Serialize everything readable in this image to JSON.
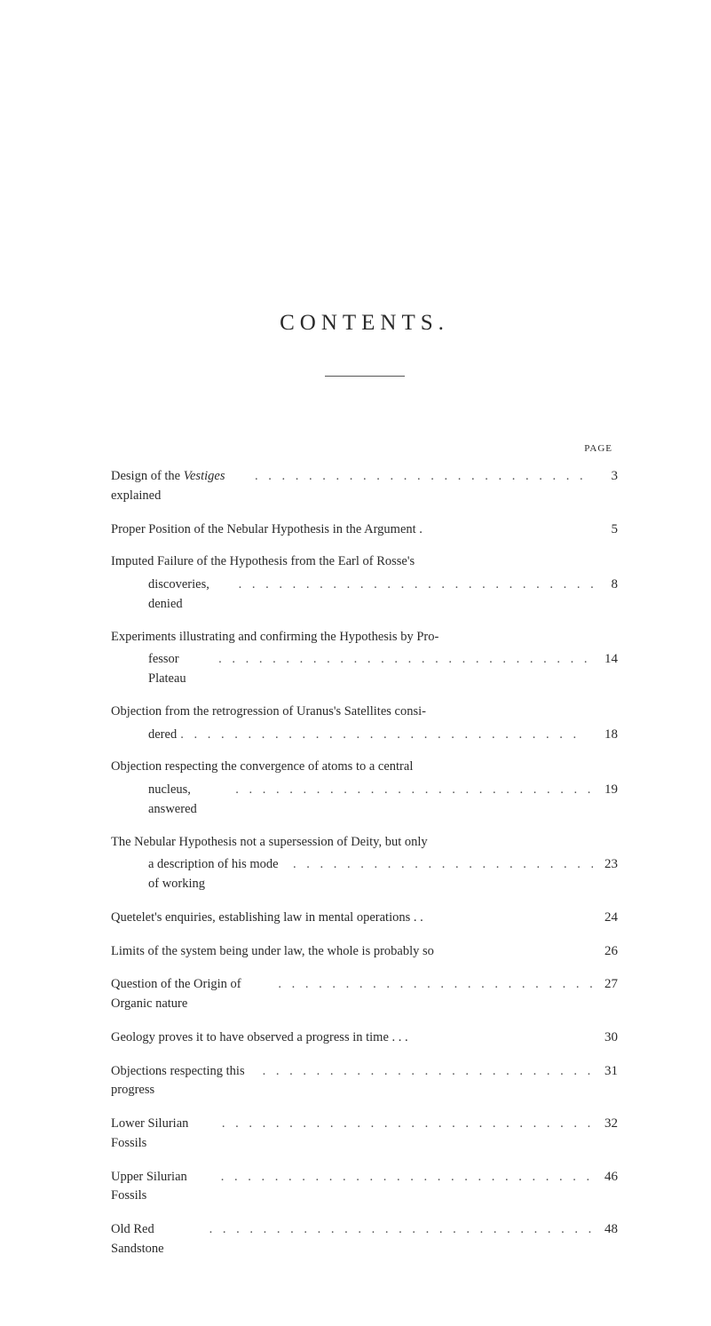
{
  "title": "CONTENTS.",
  "pageHeader": "PAGE",
  "leaderDots": ". . . . . . . . . . . . . . . . . . . . . . . . . . . . . .",
  "entries": [
    {
      "lines": [
        {
          "text": "Design of the Vestiges explained",
          "page": "3",
          "indent": false,
          "italic": false
        }
      ],
      "italicWord": "Vestiges",
      "preItalic": "Design of the ",
      "postItalic": " explained"
    },
    {
      "lines": [
        {
          "text": "Proper Position of the Nebular Hypothesis in the Argument .",
          "page": "5",
          "indent": false
        }
      ]
    },
    {
      "lines": [
        {
          "text": "Imputed Failure of the Hypothesis from the Earl of Rosse's",
          "page": null,
          "indent": false
        },
        {
          "text": "discoveries, denied",
          "page": "8",
          "indent": true
        }
      ]
    },
    {
      "lines": [
        {
          "text": "Experiments illustrating and confirming the Hypothesis by Pro-",
          "page": null,
          "indent": false
        },
        {
          "text": "fessor Plateau",
          "page": "14",
          "indent": true
        }
      ]
    },
    {
      "lines": [
        {
          "text": "Objection from the retrogression of Uranus's Satellites consi-",
          "page": null,
          "indent": false
        },
        {
          "text": "dered",
          "page": "18",
          "indent": true
        }
      ]
    },
    {
      "lines": [
        {
          "text": "Objection respecting the convergence of atoms to a central",
          "page": null,
          "indent": false
        },
        {
          "text": "nucleus, answered",
          "page": "19",
          "indent": true
        }
      ]
    },
    {
      "lines": [
        {
          "text": "The Nebular Hypothesis not a supersession of Deity, but only",
          "page": null,
          "indent": false
        },
        {
          "text": "a description of his mode of working",
          "page": "23",
          "indent": true
        }
      ]
    },
    {
      "lines": [
        {
          "text": "Quetelet's enquiries, establishing law in mental operations . .",
          "page": "24",
          "indent": false
        }
      ]
    },
    {
      "lines": [
        {
          "text": "Limits of the system being under law, the whole is probably so",
          "page": "26",
          "indent": false
        }
      ]
    },
    {
      "lines": [
        {
          "text": "Question of the Origin of Organic nature",
          "page": "27",
          "indent": false
        }
      ]
    },
    {
      "lines": [
        {
          "text": "Geology proves it to have observed a progress in time   .  .  .",
          "page": "30",
          "indent": false
        }
      ]
    },
    {
      "lines": [
        {
          "text": "Objections respecting this progress",
          "page": "31",
          "indent": false
        }
      ]
    },
    {
      "lines": [
        {
          "text": "Lower Silurian Fossils",
          "page": "32",
          "indent": false
        }
      ]
    },
    {
      "lines": [
        {
          "text": "Upper Silurian Fossils",
          "page": "46",
          "indent": false
        }
      ]
    },
    {
      "lines": [
        {
          "text": "Old Red Sandstone",
          "page": "48",
          "indent": false
        }
      ]
    }
  ]
}
